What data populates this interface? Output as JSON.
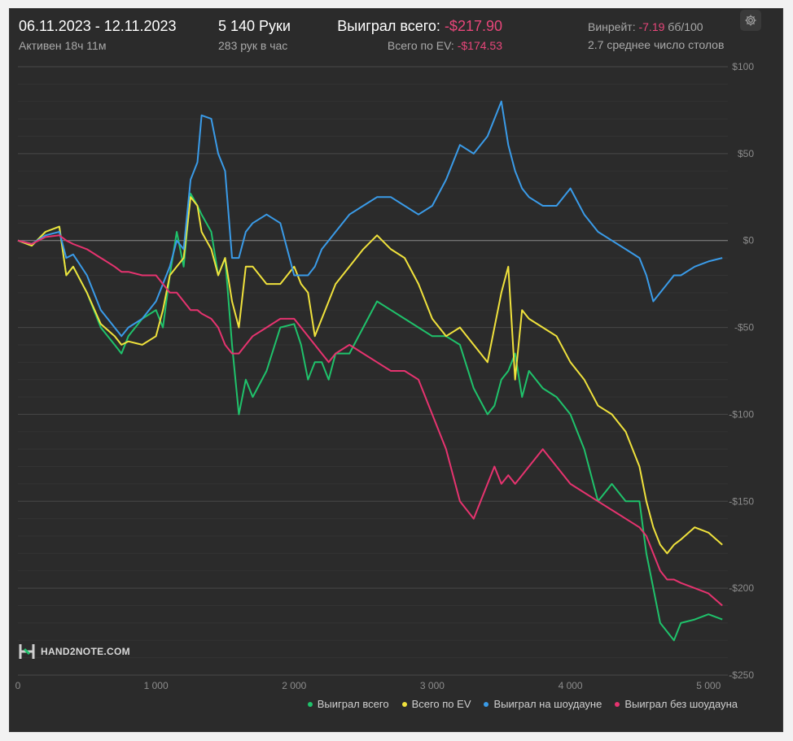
{
  "header": {
    "date_range": "06.11.2023 - 12.11.2023",
    "active": "Активен 18ч 11м",
    "hands": "5 140 Руки",
    "hands_per_hour": "283 рук в час",
    "won_label": "Выиграл всего:",
    "won_value": "-$217.90",
    "ev_label": "Всего по EV:",
    "ev_value": "-$174.53",
    "winrate_label": "Винрейт:",
    "winrate_value": "-7.19",
    "winrate_unit": "бб/100",
    "tables": "2.7 среднее число столов",
    "settings_icon": "gear-icon"
  },
  "logo": {
    "text": "HAND2NOTE.COM"
  },
  "chart_data": {
    "type": "line",
    "xlim": [
      0,
      5140
    ],
    "ylim": [
      -250,
      100
    ],
    "x_ticks": [
      0,
      1000,
      2000,
      3000,
      4000,
      5000
    ],
    "x_tick_labels": [
      "0",
      "1 000",
      "2 000",
      "3 000",
      "4 000",
      "5 000"
    ],
    "y_ticks": [
      100,
      50,
      0,
      -50,
      -100,
      -150,
      -200,
      -250
    ],
    "y_tick_labels": [
      "$100",
      "$50",
      "$0",
      "-$50",
      "-$100",
      "-$150",
      "-$200",
      "-$250"
    ],
    "legend_position": "bottom-right",
    "grid": true,
    "series": [
      {
        "name": "Выиграл всего",
        "color": "#1fc26b",
        "x": [
          0,
          100,
          200,
          300,
          350,
          400,
          500,
          600,
          700,
          750,
          800,
          900,
          1000,
          1050,
          1100,
          1150,
          1200,
          1250,
          1300,
          1330,
          1400,
          1450,
          1500,
          1550,
          1600,
          1650,
          1700,
          1800,
          1900,
          2000,
          2050,
          2100,
          2150,
          2200,
          2250,
          2300,
          2400,
          2500,
          2600,
          2700,
          2800,
          2900,
          3000,
          3100,
          3200,
          3300,
          3400,
          3450,
          3500,
          3550,
          3600,
          3650,
          3700,
          3800,
          3900,
          4000,
          4100,
          4200,
          4300,
          4400,
          4500,
          4550,
          4600,
          4650,
          4700,
          4750,
          4800,
          4900,
          5000,
          5100
        ],
        "y": [
          0,
          -3,
          5,
          8,
          -20,
          -15,
          -30,
          -50,
          -60,
          -65,
          -55,
          -45,
          -40,
          -50,
          -20,
          5,
          -15,
          27,
          20,
          15,
          5,
          -20,
          -10,
          -60,
          -100,
          -80,
          -90,
          -75,
          -50,
          -48,
          -60,
          -80,
          -70,
          -70,
          -80,
          -65,
          -65,
          -50,
          -35,
          -40,
          -45,
          -50,
          -55,
          -55,
          -60,
          -85,
          -100,
          -95,
          -80,
          -75,
          -65,
          -90,
          -75,
          -85,
          -90,
          -100,
          -120,
          -150,
          -140,
          -150,
          -150,
          -180,
          -200,
          -220,
          -225,
          -230,
          -220,
          -218,
          -215,
          -218
        ]
      },
      {
        "name": "Всего по EV",
        "color": "#f0e23c",
        "x": [
          0,
          100,
          200,
          300,
          350,
          400,
          500,
          600,
          700,
          750,
          800,
          900,
          1000,
          1050,
          1100,
          1150,
          1200,
          1250,
          1300,
          1330,
          1400,
          1450,
          1500,
          1550,
          1600,
          1650,
          1700,
          1800,
          1900,
          2000,
          2050,
          2100,
          2150,
          2200,
          2250,
          2300,
          2400,
          2500,
          2600,
          2700,
          2800,
          2900,
          3000,
          3100,
          3200,
          3300,
          3400,
          3450,
          3500,
          3550,
          3600,
          3650,
          3700,
          3800,
          3900,
          4000,
          4100,
          4200,
          4300,
          4400,
          4500,
          4550,
          4600,
          4650,
          4700,
          4750,
          4800,
          4900,
          5000,
          5100
        ],
        "y": [
          0,
          -3,
          5,
          8,
          -20,
          -15,
          -30,
          -48,
          -55,
          -60,
          -58,
          -60,
          -55,
          -40,
          -20,
          -15,
          -10,
          25,
          20,
          5,
          -5,
          -20,
          -10,
          -35,
          -50,
          -15,
          -15,
          -25,
          -25,
          -15,
          -25,
          -30,
          -55,
          -45,
          -35,
          -25,
          -15,
          -5,
          3,
          -5,
          -10,
          -25,
          -45,
          -55,
          -50,
          -60,
          -70,
          -50,
          -30,
          -15,
          -80,
          -40,
          -45,
          -50,
          -55,
          -70,
          -80,
          -95,
          -100,
          -110,
          -130,
          -150,
          -165,
          -175,
          -180,
          -175,
          -172,
          -165,
          -168,
          -175
        ]
      },
      {
        "name": "Выиграл на шоудауне",
        "color": "#3a9be8",
        "x": [
          0,
          100,
          200,
          300,
          350,
          400,
          500,
          600,
          700,
          750,
          800,
          900,
          1000,
          1050,
          1100,
          1150,
          1200,
          1250,
          1300,
          1330,
          1400,
          1450,
          1500,
          1550,
          1600,
          1650,
          1700,
          1800,
          1900,
          2000,
          2050,
          2100,
          2150,
          2200,
          2250,
          2300,
          2400,
          2500,
          2600,
          2700,
          2800,
          2900,
          3000,
          3100,
          3200,
          3300,
          3400,
          3450,
          3500,
          3550,
          3600,
          3650,
          3700,
          3800,
          3900,
          4000,
          4100,
          4200,
          4300,
          4400,
          4500,
          4550,
          4600,
          4650,
          4700,
          4750,
          4800,
          4900,
          5000,
          5100
        ],
        "y": [
          0,
          -2,
          3,
          5,
          -10,
          -8,
          -20,
          -40,
          -50,
          -55,
          -50,
          -45,
          -35,
          -25,
          -15,
          0,
          -5,
          35,
          45,
          72,
          70,
          50,
          40,
          -10,
          -10,
          5,
          10,
          15,
          10,
          -20,
          -20,
          -20,
          -15,
          -5,
          0,
          5,
          15,
          20,
          25,
          25,
          20,
          15,
          20,
          35,
          55,
          50,
          60,
          70,
          80,
          55,
          40,
          30,
          25,
          20,
          20,
          30,
          15,
          5,
          0,
          -5,
          -10,
          -20,
          -35,
          -30,
          -25,
          -20,
          -20,
          -15,
          -12,
          -10
        ]
      },
      {
        "name": "Выиграл без шоудауна",
        "color": "#e6336f",
        "x": [
          0,
          100,
          200,
          300,
          350,
          400,
          500,
          600,
          700,
          750,
          800,
          900,
          1000,
          1050,
          1100,
          1150,
          1200,
          1250,
          1300,
          1330,
          1400,
          1450,
          1500,
          1550,
          1600,
          1650,
          1700,
          1800,
          1900,
          2000,
          2050,
          2100,
          2150,
          2200,
          2250,
          2300,
          2400,
          2500,
          2600,
          2700,
          2800,
          2900,
          3000,
          3100,
          3200,
          3300,
          3400,
          3450,
          3500,
          3550,
          3600,
          3650,
          3700,
          3800,
          3900,
          4000,
          4100,
          4200,
          4300,
          4400,
          4500,
          4550,
          4600,
          4650,
          4700,
          4750,
          4800,
          4900,
          5000,
          5100
        ],
        "y": [
          0,
          -2,
          2,
          3,
          0,
          -2,
          -5,
          -10,
          -15,
          -18,
          -18,
          -20,
          -20,
          -25,
          -30,
          -30,
          -35,
          -40,
          -40,
          -42,
          -45,
          -50,
          -60,
          -65,
          -65,
          -60,
          -55,
          -50,
          -45,
          -45,
          -50,
          -55,
          -60,
          -65,
          -70,
          -65,
          -60,
          -65,
          -70,
          -75,
          -75,
          -80,
          -100,
          -120,
          -150,
          -160,
          -140,
          -130,
          -140,
          -135,
          -140,
          -135,
          -130,
          -120,
          -130,
          -140,
          -145,
          -150,
          -155,
          -160,
          -165,
          -170,
          -180,
          -190,
          -195,
          -195,
          -197,
          -200,
          -203,
          -210
        ]
      }
    ]
  }
}
